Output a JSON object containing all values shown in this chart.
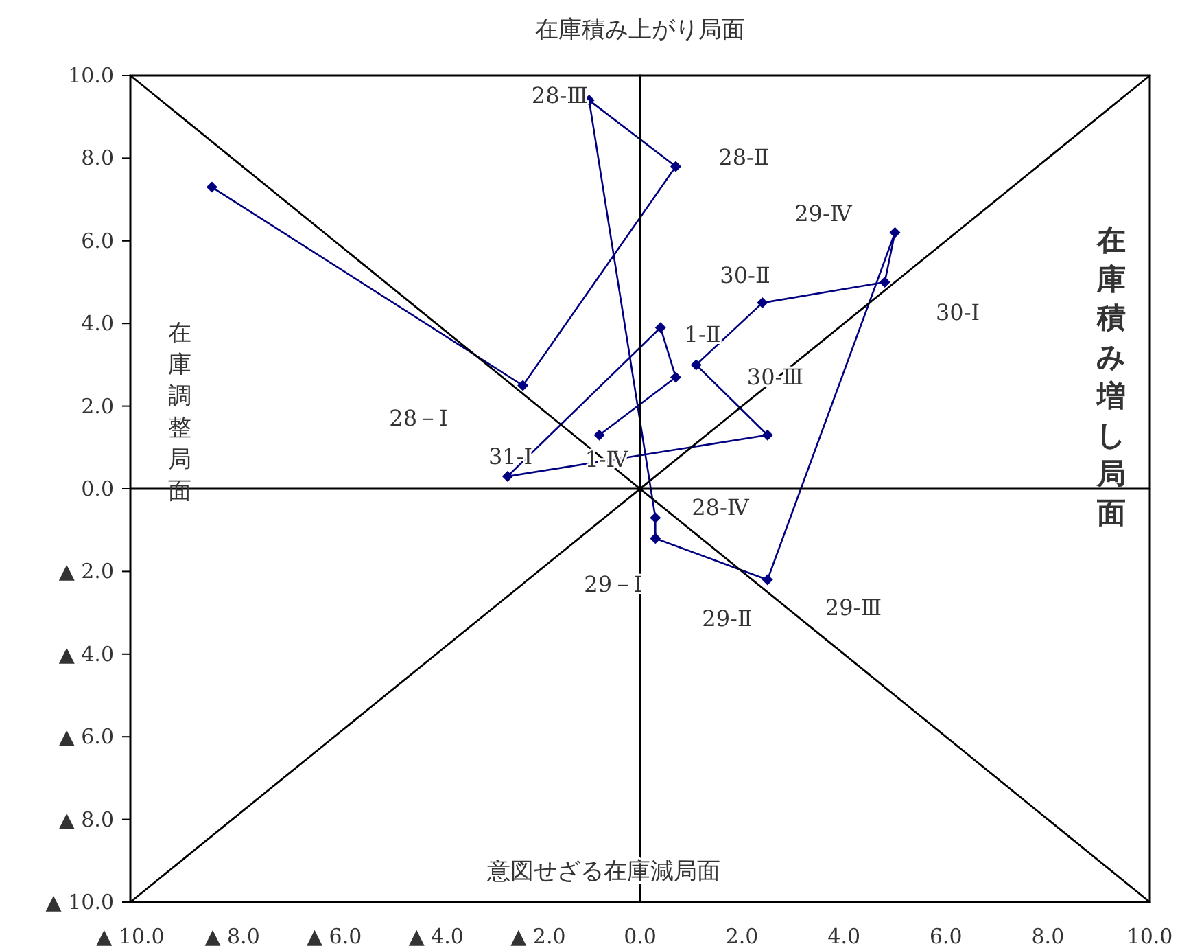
{
  "chart_data": {
    "type": "line",
    "title": "在庫積み上がり局面",
    "ylabel": "在庫調整局面",
    "y2label": "在庫積み増し局面",
    "xlim": [
      -10,
      10
    ],
    "ylim": [
      -10,
      10
    ],
    "xticks": [
      {
        "value": -10,
        "label": "▲ 10.0"
      },
      {
        "value": -8,
        "label": "▲ 8.0"
      },
      {
        "value": -6,
        "label": "▲ 6.0"
      },
      {
        "value": -4,
        "label": "▲ 4.0"
      },
      {
        "value": -2,
        "label": "▲ 2.0"
      },
      {
        "value": 0,
        "label": "0.0"
      },
      {
        "value": 2,
        "label": "2.0"
      },
      {
        "value": 4,
        "label": "4.0"
      },
      {
        "value": 6,
        "label": "6.0"
      },
      {
        "value": 8,
        "label": "8.0"
      },
      {
        "value": 10,
        "label": "10.0"
      }
    ],
    "yticks": [
      {
        "value": -10,
        "label": "▲ 10.0"
      },
      {
        "value": -8,
        "label": "▲ 8.0"
      },
      {
        "value": -6,
        "label": "▲ 6.0"
      },
      {
        "value": -4,
        "label": "▲ 4.0"
      },
      {
        "value": -2,
        "label": "▲ 2.0"
      },
      {
        "value": 0,
        "label": "0.0"
      },
      {
        "value": 2,
        "label": "2.0"
      },
      {
        "value": 4,
        "label": "4.0"
      },
      {
        "value": 6,
        "label": "6.0"
      },
      {
        "value": 8,
        "label": "8.0"
      },
      {
        "value": 10,
        "label": "10.0"
      }
    ],
    "grid": false,
    "line_style": "solid",
    "series": [
      {
        "color": "#000080",
        "marker": "diamond",
        "x": [
          -8.4,
          -2.3,
          0.7,
          -1.0,
          0.3,
          0.3,
          2.5,
          5.0,
          4.8,
          2.4,
          1.1,
          2.5,
          -2.6,
          0.4,
          0.7,
          -0.8
        ],
        "values": [
          7.3,
          2.5,
          7.8,
          9.4,
          -0.7,
          -1.2,
          -2.2,
          6.2,
          5.0,
          4.5,
          3.0,
          1.3,
          0.3,
          3.9,
          2.7,
          1.3
        ]
      },
      {
        "color": "#000000",
        "marker": "none",
        "x": [
          -10,
          10
        ],
        "values": [
          10,
          -10
        ]
      },
      {
        "color": "#000000",
        "marker": "none",
        "x": [
          -10,
          10
        ],
        "values": [
          -10,
          10
        ]
      },
      {
        "color": "#000000",
        "marker": "none",
        "x": [
          0,
          0
        ],
        "values": [
          -10,
          10
        ]
      },
      {
        "color": "#000000",
        "marker": "none",
        "x": [
          -10,
          10
        ],
        "values": [
          0,
          0
        ]
      }
    ],
    "annotations": [
      "意図せざる在庫減局面",
      "28-Ⅲ",
      "28-Ⅱ",
      "29-Ⅳ",
      "30-Ⅱ",
      "30-Ⅰ",
      "1-Ⅱ",
      "30-Ⅲ",
      "28－Ⅰ",
      "31-Ⅰ",
      "1-Ⅳ",
      "28-Ⅳ",
      "29－Ⅰ",
      "29-Ⅱ",
      "29-Ⅲ"
    ]
  }
}
